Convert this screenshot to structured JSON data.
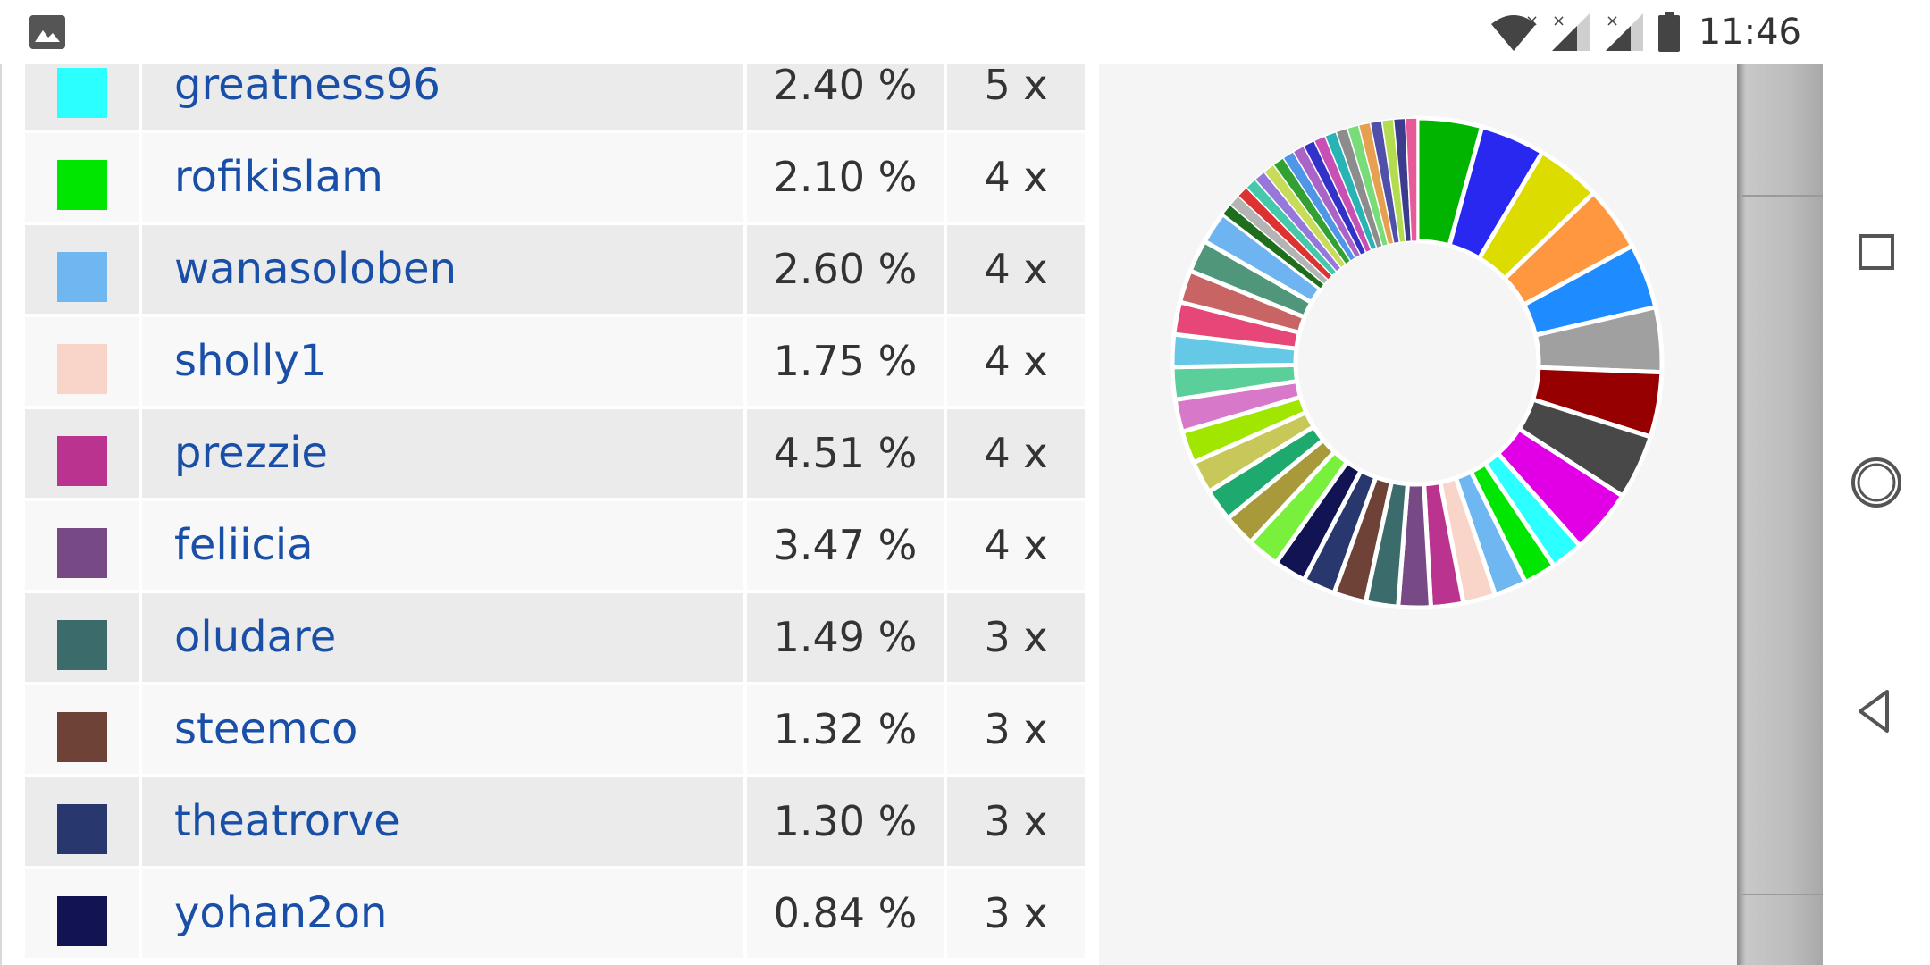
{
  "status_bar": {
    "time": "11:46",
    "icons": [
      "gallery-icon",
      "wifi-icon",
      "signal-icon",
      "signal-icon",
      "battery-icon"
    ]
  },
  "table": {
    "rows": [
      {
        "color": "#2bffff",
        "name": "greatness96",
        "percent": "2.40 %",
        "count": "5 x"
      },
      {
        "color": "#00e600",
        "name": "rofikislam",
        "percent": "2.10 %",
        "count": "4 x"
      },
      {
        "color": "#6eb7f0",
        "name": "wanasoloben",
        "percent": "2.60 %",
        "count": "4 x"
      },
      {
        "color": "#f9d5c9",
        "name": "sholly1",
        "percent": "1.75 %",
        "count": "4 x"
      },
      {
        "color": "#b9338f",
        "name": "prezzie",
        "percent": "4.51 %",
        "count": "4 x"
      },
      {
        "color": "#784a85",
        "name": "feliicia",
        "percent": "3.47 %",
        "count": "4 x"
      },
      {
        "color": "#3c6b6b",
        "name": "oludare",
        "percent": "1.49 %",
        "count": "3 x"
      },
      {
        "color": "#6e4236",
        "name": "steemco",
        "percent": "1.32 %",
        "count": "3 x"
      },
      {
        "color": "#28386e",
        "name": "theatrorve",
        "percent": "1.30 %",
        "count": "3 x"
      },
      {
        "color": "#121352",
        "name": "yohan2on",
        "percent": "0.84 %",
        "count": "3 x"
      }
    ]
  },
  "chart_data": {
    "type": "pie",
    "variant": "donut",
    "slice_colors": [
      "#00b400",
      "#2828f0",
      "#dcdc00",
      "#ff9640",
      "#1e8cff",
      "#a0a0a0",
      "#960000",
      "#484848",
      "#e100e6",
      "#2bffff",
      "#00e600",
      "#6eb7f0",
      "#f9d5c9",
      "#b9338f",
      "#784a85",
      "#3c6b6b",
      "#6e4236",
      "#28386e",
      "#121352",
      "#78f03c",
      "#a89a3a",
      "#1eaa6e",
      "#c8c85a",
      "#a0e600",
      "#d778c8",
      "#5acf9a",
      "#64c8e6",
      "#e64678",
      "#c86464",
      "#50967a",
      "#6eb4f0",
      "#1e6e1e",
      "#b4b4b4",
      "#dc3232",
      "#46c8aa",
      "#9678dc",
      "#c8dc5a",
      "#32a032",
      "#5096e6",
      "#aa64c8",
      "#3232c8",
      "#c850b4",
      "#28b4b4",
      "#8c8c8c",
      "#78dc78",
      "#e6a050",
      "#5050aa",
      "#b4dc50",
      "#3c3c8c",
      "#e65a9a"
    ]
  }
}
